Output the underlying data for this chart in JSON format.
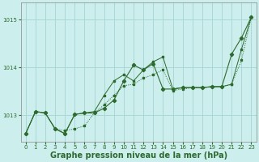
{
  "bg_color": "#cceeed",
  "grid_color": "#aad8d6",
  "line_color": "#2d6a2d",
  "marker_color": "#2d6a2d",
  "xlabel": "Graphe pression niveau de la mer (hPa)",
  "xlabel_fontsize": 7,
  "ylim": [
    1012.45,
    1015.35
  ],
  "xlim": [
    -0.5,
    23.5
  ],
  "yticks": [
    1013,
    1014,
    1015
  ],
  "xticks": [
    0,
    1,
    2,
    3,
    4,
    5,
    6,
    7,
    8,
    9,
    10,
    11,
    12,
    13,
    14,
    15,
    16,
    17,
    18,
    19,
    20,
    21,
    22,
    23
  ],
  "series1_x": [
    0,
    1,
    2,
    3,
    4,
    5,
    6,
    7,
    8,
    9,
    10,
    11,
    12,
    13,
    14,
    15,
    16,
    17,
    18,
    19,
    20,
    21,
    22,
    23
  ],
  "series1_y": [
    1012.62,
    1013.08,
    1013.05,
    1012.72,
    1012.68,
    1012.72,
    1012.78,
    1013.05,
    1013.22,
    1013.42,
    1013.62,
    1013.65,
    1013.78,
    1013.85,
    1013.95,
    1013.52,
    1013.55,
    1013.58,
    1013.58,
    1013.6,
    1013.6,
    1013.65,
    1014.15,
    1015.05
  ],
  "series2_x": [
    0,
    1,
    2,
    3,
    4,
    5,
    6,
    7,
    8,
    9,
    10,
    11,
    12,
    13,
    14,
    15,
    16,
    17,
    18,
    19,
    20,
    21,
    22,
    23
  ],
  "series2_y": [
    1012.62,
    1013.08,
    1013.05,
    1012.72,
    1012.62,
    1013.02,
    1013.05,
    1013.05,
    1013.15,
    1013.32,
    1013.72,
    1014.05,
    1013.95,
    1014.08,
    1013.55,
    1013.55,
    1013.58,
    1013.58,
    1013.58,
    1013.6,
    1013.6,
    1014.28,
    1014.62,
    1015.05
  ],
  "series3_x": [
    0,
    1,
    2,
    3,
    4,
    5,
    6,
    7,
    8,
    9,
    10,
    11,
    12,
    13,
    14,
    15,
    16,
    17,
    18,
    19,
    20,
    21,
    22,
    23
  ],
  "series3_y": [
    1012.62,
    1013.08,
    1013.05,
    1012.72,
    1012.62,
    1013.02,
    1013.05,
    1013.08,
    1013.42,
    1013.72,
    1013.85,
    1013.72,
    1013.95,
    1014.12,
    1014.22,
    1013.55,
    1013.58,
    1013.58,
    1013.58,
    1013.6,
    1013.6,
    1013.65,
    1014.38,
    1015.05
  ]
}
